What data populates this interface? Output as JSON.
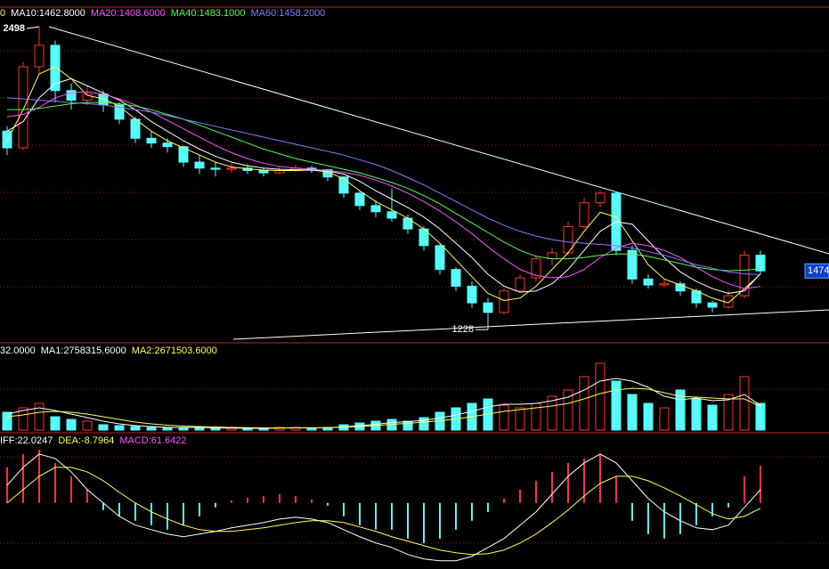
{
  "chart_data": [
    {
      "type": "candlestick",
      "up_color": "#ff3232",
      "down_color": "#54fcfc",
      "ylim": [
        1180,
        2580
      ],
      "ohlc": [
        [
          2060,
          2080,
          1960,
          1990
        ],
        [
          1990,
          2350,
          1980,
          2330
        ],
        [
          2330,
          2498,
          2300,
          2420
        ],
        [
          2420,
          2440,
          2180,
          2230
        ],
        [
          2230,
          2260,
          2150,
          2190
        ],
        [
          2190,
          2250,
          2170,
          2215
        ],
        [
          2215,
          2230,
          2140,
          2170
        ],
        [
          2170,
          2180,
          2090,
          2110
        ],
        [
          2110,
          2120,
          2010,
          2030
        ],
        [
          2030,
          2060,
          1990,
          2010
        ],
        [
          2010,
          2030,
          1970,
          1995
        ],
        [
          1995,
          2000,
          1910,
          1930
        ],
        [
          1930,
          1960,
          1880,
          1905
        ],
        [
          1905,
          1930,
          1870,
          1900
        ],
        [
          1900,
          1925,
          1885,
          1905
        ],
        [
          1905,
          1920,
          1880,
          1895
        ],
        [
          1895,
          1905,
          1870,
          1885
        ],
        [
          1885,
          1910,
          1880,
          1895
        ],
        [
          1895,
          1920,
          1890,
          1905
        ],
        [
          1905,
          1915,
          1885,
          1898
        ],
        [
          1898,
          1900,
          1850,
          1868
        ],
        [
          1868,
          1870,
          1780,
          1800
        ],
        [
          1800,
          1810,
          1730,
          1748
        ],
        [
          1748,
          1770,
          1700,
          1722
        ],
        [
          1722,
          1820,
          1680,
          1695
        ],
        [
          1695,
          1710,
          1630,
          1650
        ],
        [
          1650,
          1660,
          1560,
          1580
        ],
        [
          1580,
          1590,
          1460,
          1480
        ],
        [
          1480,
          1490,
          1390,
          1410
        ],
        [
          1410,
          1430,
          1320,
          1340
        ],
        [
          1340,
          1360,
          1228,
          1300
        ],
        [
          1300,
          1400,
          1290,
          1390
        ],
        [
          1390,
          1460,
          1380,
          1445
        ],
        [
          1445,
          1540,
          1430,
          1525
        ],
        [
          1525,
          1570,
          1500,
          1550
        ],
        [
          1550,
          1680,
          1540,
          1660
        ],
        [
          1660,
          1780,
          1650,
          1760
        ],
        [
          1760,
          1812,
          1740,
          1800
        ],
        [
          1800,
          1805,
          1540,
          1560
        ],
        [
          1560,
          1580,
          1420,
          1440
        ],
        [
          1440,
          1460,
          1400,
          1415
        ],
        [
          1415,
          1440,
          1405,
          1420
        ],
        [
          1420,
          1430,
          1370,
          1390
        ],
        [
          1390,
          1400,
          1320,
          1340
        ],
        [
          1340,
          1350,
          1300,
          1322
        ],
        [
          1322,
          1390,
          1315,
          1370
        ],
        [
          1370,
          1560,
          1360,
          1540
        ],
        [
          1540,
          1560,
          1460,
          1474
        ]
      ],
      "series": [
        {
          "name": "0",
          "color": "#ffff54",
          "values": [
            2020,
            2150,
            2300,
            2330,
            2280,
            2210,
            2195,
            2165,
            2110,
            2060,
            2020,
            1990,
            1960,
            1930,
            1910,
            1902,
            1897,
            1895,
            1895,
            1897,
            1890,
            1860,
            1810,
            1765,
            1730,
            1695,
            1650,
            1590,
            1520,
            1450,
            1380,
            1350,
            1360,
            1410,
            1480,
            1550,
            1640,
            1720,
            1700,
            1600,
            1500,
            1440,
            1415,
            1390,
            1360,
            1340,
            1400,
            1460
          ]
        },
        {
          "name": "MA10:1462.8000",
          "color": "#ffffff",
          "values": [
            2060,
            2100,
            2200,
            2260,
            2280,
            2250,
            2220,
            2190,
            2150,
            2100,
            2060,
            2020,
            1985,
            1955,
            1930,
            1915,
            1905,
            1900,
            1898,
            1897,
            1893,
            1880,
            1850,
            1810,
            1775,
            1740,
            1700,
            1650,
            1590,
            1530,
            1460,
            1410,
            1385,
            1390,
            1420,
            1480,
            1560,
            1640,
            1680,
            1670,
            1600,
            1530,
            1470,
            1430,
            1400,
            1380,
            1390,
            1462.8
          ]
        },
        {
          "name": "MA20:1408.6000",
          "color": "#ff54ff",
          "values": [
            2120,
            2130,
            2160,
            2200,
            2220,
            2225,
            2215,
            2195,
            2170,
            2140,
            2105,
            2070,
            2035,
            2000,
            1970,
            1945,
            1925,
            1912,
            1905,
            1900,
            1895,
            1888,
            1875,
            1855,
            1830,
            1800,
            1765,
            1725,
            1680,
            1630,
            1575,
            1525,
            1480,
            1455,
            1445,
            1450,
            1480,
            1530,
            1570,
            1590,
            1580,
            1560,
            1530,
            1490,
            1450,
            1420,
            1400,
            1408.6
          ]
        },
        {
          "name": "MA40:1483.1000",
          "color": "#54ff54",
          "values": [
            2150,
            2150,
            2155,
            2165,
            2175,
            2180,
            2180,
            2175,
            2165,
            2150,
            2130,
            2110,
            2085,
            2060,
            2035,
            2010,
            1985,
            1965,
            1945,
            1930,
            1915,
            1900,
            1885,
            1865,
            1845,
            1820,
            1790,
            1755,
            1715,
            1675,
            1635,
            1595,
            1560,
            1535,
            1525,
            1525,
            1530,
            1540,
            1545,
            1545,
            1535,
            1520,
            1505,
            1490,
            1480,
            1475,
            1477,
            1483.1
          ]
        },
        {
          "name": "MA60:1458.2000",
          "color": "#8080ff",
          "values": [
            2200,
            2195,
            2190,
            2185,
            2180,
            2175,
            2170,
            2160,
            2150,
            2140,
            2125,
            2110,
            2095,
            2080,
            2065,
            2050,
            2035,
            2020,
            2005,
            1990,
            1975,
            1960,
            1940,
            1920,
            1895,
            1865,
            1835,
            1800,
            1765,
            1730,
            1695,
            1665,
            1640,
            1620,
            1605,
            1595,
            1590,
            1585,
            1580,
            1570,
            1555,
            1540,
            1520,
            1500,
            1485,
            1470,
            1462,
            1458.2
          ]
        }
      ]
    },
    {
      "type": "bar",
      "label": "32.0000",
      "ylim": [
        0,
        9600000
      ],
      "values": [
        2000000,
        2500000,
        3000000,
        1500000,
        1200000,
        1000000,
        600000,
        500000,
        400000,
        300000,
        300000,
        300000,
        200000,
        200000,
        200000,
        200000,
        200000,
        300000,
        300000,
        200000,
        300000,
        600000,
        800000,
        1000000,
        1200000,
        1000000,
        1400000,
        2000000,
        2500000,
        3000000,
        3500000,
        2800000,
        2500000,
        3000000,
        3800000,
        4500000,
        6000000,
        7500000,
        5500000,
        4000000,
        3000000,
        2500000,
        4500000,
        3500000,
        2800000,
        4000000,
        6000000,
        3000000
      ],
      "series": [
        {
          "name": "MA1:2758315.6000",
          "color": "#ffffff",
          "values": [
            1800000,
            2200000,
            2500000,
            2200000,
            1800000,
            1400000,
            1000000,
            700000,
            500000,
            400000,
            300000,
            300000,
            300000,
            250000,
            220000,
            200000,
            200000,
            230000,
            260000,
            260000,
            280000,
            360000,
            500000,
            650000,
            850000,
            950000,
            1100000,
            1350000,
            1700000,
            2100000,
            2600000,
            2900000,
            2900000,
            3000000,
            3300000,
            3700000,
            4500000,
            5500000,
            5800000,
            5500000,
            4800000,
            3800000,
            3400000,
            3600000,
            3300000,
            3400000,
            4000000,
            2758315.6
          ]
        },
        {
          "name": "MA2:2671503.6000",
          "color": "#ffff54",
          "values": [
            1500000,
            1700000,
            2000000,
            2100000,
            2000000,
            1800000,
            1500000,
            1200000,
            900000,
            700000,
            550000,
            450000,
            400000,
            350000,
            300000,
            270000,
            250000,
            240000,
            240000,
            250000,
            270000,
            320000,
            400000,
            500000,
            650000,
            750000,
            900000,
            1050000,
            1250000,
            1500000,
            1800000,
            2100000,
            2300000,
            2500000,
            2700000,
            3000000,
            3500000,
            4100000,
            4500000,
            4700000,
            4600000,
            4200000,
            3800000,
            3700000,
            3600000,
            3500000,
            3500000,
            2671503.6
          ]
        }
      ]
    },
    {
      "type": "macd",
      "ylim": [
        -106,
        110
      ],
      "pos_color": "#ff3232",
      "neg_color": "#54fcfc",
      "series": [
        {
          "name": "IFF:22.0247",
          "color": "#ffffff",
          "values": [
            29.3,
            58.7,
            80.7,
            73.4,
            51.3,
            22,
            0,
            -22,
            -36.7,
            -44,
            -51.3,
            -55.7,
            -51.3,
            -46.9,
            -41,
            -36.7,
            -32.3,
            -26.4,
            -23.5,
            -26.4,
            -32.3,
            -44,
            -55.7,
            -66,
            -73.4,
            -85,
            -92.4,
            -95.4,
            -95.4,
            -88,
            -73.4,
            -58.7,
            -36.7,
            -14.7,
            14.7,
            44,
            66,
            80.7,
            66,
            36.7,
            7.3,
            -14.7,
            -29.3,
            -41,
            -44,
            -36.7,
            -7.3,
            22.0247
          ]
        },
        {
          "name": "DEA:-8.7964",
          "color": "#ffff54",
          "values": [
            0,
            22,
            44,
            58.7,
            58.7,
            51.3,
            36.7,
            17.6,
            0,
            -14.7,
            -26.4,
            -36.7,
            -44,
            -46.9,
            -46.9,
            -44,
            -41,
            -36.7,
            -32.3,
            -29.3,
            -29.3,
            -32.3,
            -39.6,
            -46.9,
            -55.7,
            -63,
            -70.4,
            -77.7,
            -82.2,
            -85,
            -83.6,
            -77.7,
            -66,
            -51.3,
            -32.3,
            -11.7,
            11.7,
            32.3,
            44,
            44,
            36.7,
            24.9,
            11.7,
            -2.9,
            -17.6,
            -26.4,
            -22,
            -8.7964
          ]
        }
      ],
      "histogram": {
        "name": "MACD:61.6422",
        "color": "#ff54ff",
        "values": [
          58.7,
          80.7,
          88,
          66,
          44,
          22,
          -11.7,
          -22,
          -29.3,
          -36.7,
          -44,
          -36.7,
          -22,
          -7.3,
          4.4,
          8.8,
          11.7,
          14.7,
          11.7,
          5.9,
          -4.4,
          -22,
          -36.7,
          -44,
          -44,
          -58.7,
          -66,
          -58.7,
          -44,
          -29.3,
          -14.7,
          7.3,
          22,
          36.7,
          51.3,
          66,
          73.4,
          80.7,
          44,
          -29.3,
          -51.3,
          -58.7,
          -51.3,
          -36.7,
          -22,
          -7.3,
          44,
          61.6422
        ]
      }
    }
  ]
}
